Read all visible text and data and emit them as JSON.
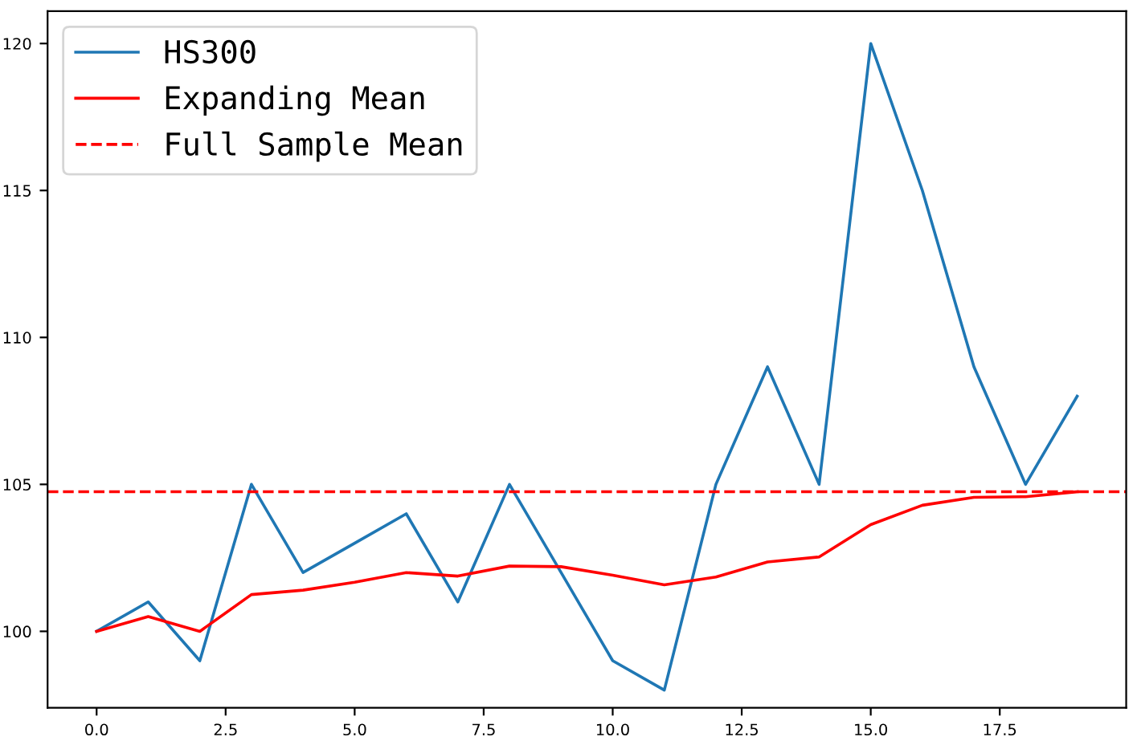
{
  "chart_data": {
    "type": "line",
    "x": [
      0,
      1,
      2,
      3,
      4,
      5,
      6,
      7,
      8,
      9,
      10,
      11,
      12,
      13,
      14,
      15,
      16,
      17,
      18,
      19
    ],
    "series": [
      {
        "name": "HS300",
        "color": "#1f77b4",
        "values": [
          100,
          101,
          99,
          105,
          102,
          103,
          104,
          101,
          105,
          102,
          99,
          98,
          105,
          109,
          105,
          120,
          115,
          109,
          105,
          108
        ]
      },
      {
        "name": "Expanding Mean",
        "color": "#ff0000",
        "values": [
          100,
          100.5,
          100,
          101.25,
          101.4,
          101.67,
          102,
          101.88,
          102.22,
          102.2,
          101.91,
          101.58,
          101.85,
          102.36,
          102.53,
          103.63,
          104.29,
          104.56,
          104.58,
          104.75
        ]
      }
    ],
    "ref_lines": [
      {
        "axis": "y",
        "value": 104.75,
        "label": "Full Sample Mean",
        "color": "#ff0000",
        "line_style": "dashed"
      }
    ],
    "xlim": [
      -0.95,
      19.95
    ],
    "ylim": [
      97.4,
      121.1
    ],
    "xticks": [
      {
        "value": 0,
        "label": "0.0"
      },
      {
        "value": 2.5,
        "label": "2.5"
      },
      {
        "value": 5,
        "label": "5.0"
      },
      {
        "value": 7.5,
        "label": "7.5"
      },
      {
        "value": 10,
        "label": "10.0"
      },
      {
        "value": 12.5,
        "label": "12.5"
      },
      {
        "value": 15,
        "label": "15.0"
      },
      {
        "value": 17.5,
        "label": "17.5"
      }
    ],
    "yticks": [
      100,
      105,
      110,
      115,
      120
    ],
    "legend": "top left",
    "grid": false,
    "line_style": "solid",
    "marker": "none"
  }
}
